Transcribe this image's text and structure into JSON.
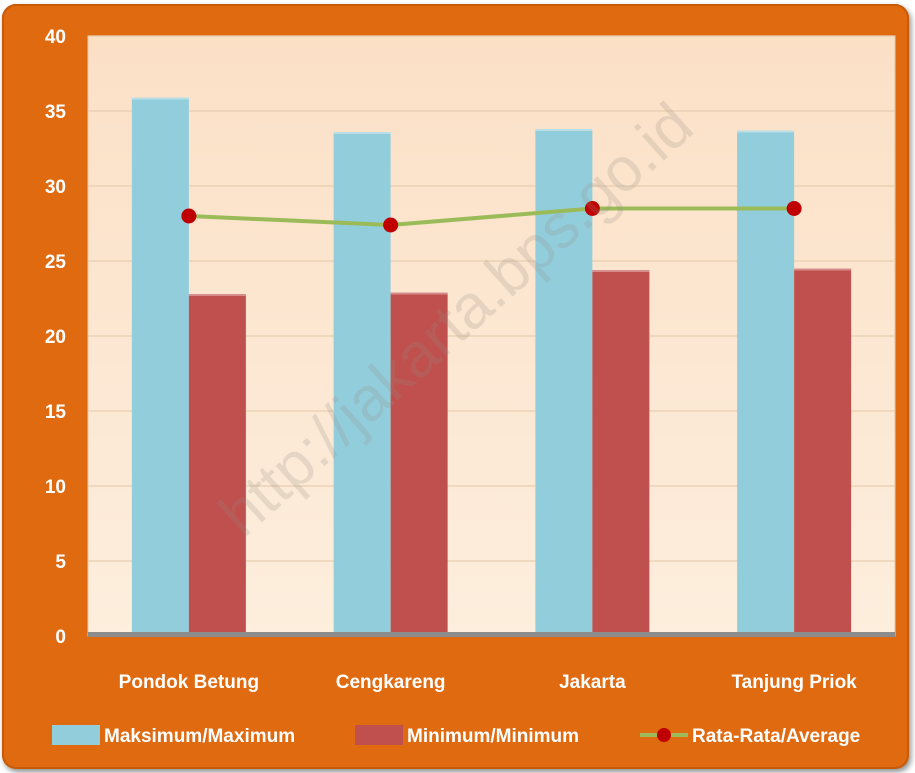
{
  "chart_data": {
    "type": "bar",
    "categories": [
      "Pondok Betung",
      "Cengkareng",
      "Jakarta",
      "Tanjung Priok"
    ],
    "series": [
      {
        "name": "Maksimum/Maximum",
        "type": "bar",
        "color": "#92cddc",
        "values": [
          35.9,
          33.6,
          33.8,
          33.7
        ]
      },
      {
        "name": "Minimum/Minimum",
        "type": "bar",
        "color": "#c0504d",
        "values": [
          22.8,
          22.9,
          24.4,
          24.5
        ]
      },
      {
        "name": "Rata-Rata/Average",
        "type": "line",
        "color": "#9bbb59",
        "marker_color": "#c00000",
        "values": [
          28.0,
          27.4,
          28.5,
          28.5
        ]
      }
    ],
    "ylim": [
      0,
      40
    ],
    "yticks": [
      0,
      5,
      10,
      15,
      20,
      25,
      30,
      35,
      40
    ],
    "ytick_labels": [
      "0",
      "5",
      "10",
      "15",
      "20",
      "25",
      "30",
      "35",
      "40"
    ],
    "grid": true,
    "legend_position": "bottom",
    "watermark": "http://jakarta.bps.go.id"
  }
}
